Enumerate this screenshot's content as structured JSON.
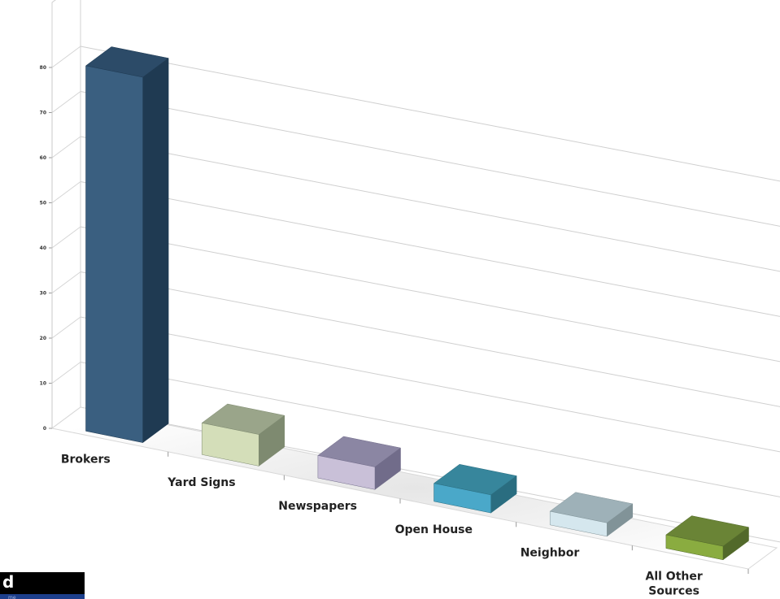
{
  "chart_data": {
    "type": "bar",
    "view": "3d",
    "categories": [
      "Brokers",
      "Yard Signs",
      "Newspapers",
      "Open House",
      "Neighbor",
      "All Other Sources"
    ],
    "values": [
      81,
      7,
      5,
      4,
      3,
      3
    ],
    "title": "",
    "xlabel": "",
    "ylabel": "",
    "ylim": [
      0,
      80
    ],
    "yticks": [
      0,
      10,
      20,
      30,
      40,
      50,
      60,
      70,
      80
    ],
    "grid": true,
    "legend": "none",
    "colors": {
      "front": [
        "#3a5f80",
        "#d4deb9",
        "#c9c0d8",
        "#4aa8c9",
        "#d5e7ee",
        "#8aac40"
      ],
      "top": [
        "#2c4b68",
        "#9aa58a",
        "#8b86a3",
        "#37869c",
        "#9eb1b8",
        "#6a8436"
      ],
      "side": [
        "#1f3a52",
        "#7e8a70",
        "#716c8a",
        "#2a6d80",
        "#819398",
        "#52692a"
      ]
    }
  },
  "badge": {
    "letter": "d",
    "sub": "me"
  }
}
